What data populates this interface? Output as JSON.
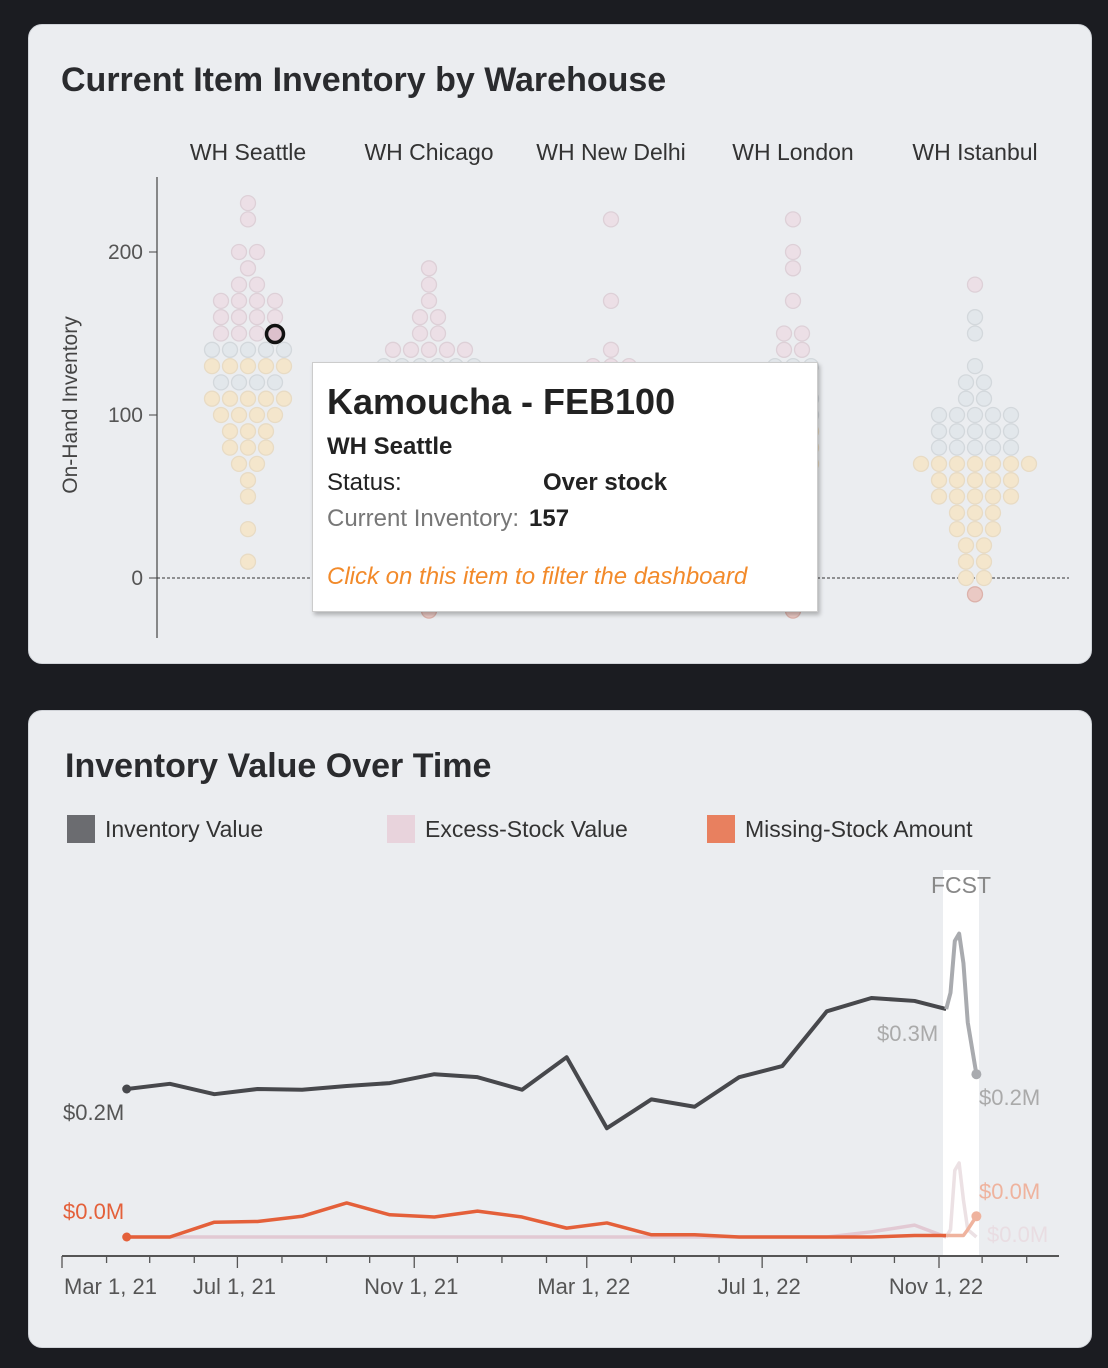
{
  "inventory_card": {
    "title": "Current Item Inventory by Warehouse",
    "y_axis_label": "On-Hand Inventory",
    "y_ticks": [
      0,
      100,
      200
    ],
    "status_colors": {
      "Over stock": "#ecdfe6",
      "Normal": "#e2e7eb",
      "Under stock": "#f4e6cc",
      "Out of stock": "#eac9c4"
    },
    "warehouses": [
      {
        "name": "WH Seattle",
        "bins": [
          [
            230,
            1,
            "Over stock"
          ],
          [
            220,
            1,
            "Over stock"
          ],
          [
            200,
            2,
            "Over stock"
          ],
          [
            190,
            1,
            "Over stock"
          ],
          [
            180,
            2,
            "Over stock"
          ],
          [
            170,
            4,
            "Over stock"
          ],
          [
            160,
            4,
            "Over stock"
          ],
          [
            150,
            4,
            "Over stock"
          ],
          [
            140,
            5,
            "Normal"
          ],
          [
            130,
            5,
            "Under stock"
          ],
          [
            120,
            4,
            "Normal"
          ],
          [
            110,
            5,
            "Under stock"
          ],
          [
            100,
            4,
            "Under stock"
          ],
          [
            90,
            3,
            "Under stock"
          ],
          [
            80,
            3,
            "Under stock"
          ],
          [
            70,
            2,
            "Under stock"
          ],
          [
            60,
            1,
            "Under stock"
          ],
          [
            50,
            1,
            "Under stock"
          ],
          [
            30,
            1,
            "Under stock"
          ],
          [
            10,
            1,
            "Under stock"
          ]
        ]
      },
      {
        "name": "WH Chicago",
        "bins": [
          [
            190,
            1,
            "Over stock"
          ],
          [
            180,
            1,
            "Over stock"
          ],
          [
            170,
            1,
            "Over stock"
          ],
          [
            160,
            2,
            "Over stock"
          ],
          [
            150,
            2,
            "Over stock"
          ],
          [
            140,
            5,
            "Over stock"
          ],
          [
            130,
            6,
            "Normal"
          ],
          [
            -20,
            1,
            "Out of stock"
          ]
        ]
      },
      {
        "name": "WH New Delhi",
        "bins": [
          [
            220,
            1,
            "Over stock"
          ],
          [
            170,
            1,
            "Over stock"
          ],
          [
            140,
            1,
            "Over stock"
          ],
          [
            130,
            3,
            "Over stock"
          ]
        ]
      },
      {
        "name": "WH London",
        "bins": [
          [
            220,
            1,
            "Over stock"
          ],
          [
            200,
            1,
            "Over stock"
          ],
          [
            190,
            1,
            "Over stock"
          ],
          [
            170,
            1,
            "Over stock"
          ],
          [
            150,
            2,
            "Over stock"
          ],
          [
            140,
            2,
            "Over stock"
          ],
          [
            130,
            3,
            "Normal"
          ],
          [
            110,
            3,
            "Normal"
          ],
          [
            100,
            3,
            "Normal"
          ],
          [
            90,
            3,
            "Under stock"
          ],
          [
            80,
            3,
            "Under stock"
          ],
          [
            70,
            3,
            "Under stock"
          ],
          [
            -20,
            1,
            "Out of stock"
          ]
        ]
      },
      {
        "name": "WH Istanbul",
        "bins": [
          [
            180,
            1,
            "Over stock"
          ],
          [
            160,
            1,
            "Normal"
          ],
          [
            150,
            1,
            "Normal"
          ],
          [
            130,
            1,
            "Normal"
          ],
          [
            120,
            2,
            "Normal"
          ],
          [
            110,
            2,
            "Normal"
          ],
          [
            100,
            5,
            "Normal"
          ],
          [
            90,
            5,
            "Normal"
          ],
          [
            80,
            5,
            "Normal"
          ],
          [
            70,
            7,
            "Under stock"
          ],
          [
            60,
            5,
            "Under stock"
          ],
          [
            50,
            5,
            "Under stock"
          ],
          [
            40,
            3,
            "Under stock"
          ],
          [
            30,
            3,
            "Under stock"
          ],
          [
            20,
            2,
            "Under stock"
          ],
          [
            10,
            2,
            "Under stock"
          ],
          [
            0,
            2,
            "Under stock"
          ],
          [
            -10,
            1,
            "Out of stock"
          ]
        ]
      }
    ],
    "tooltip": {
      "title": "Kamoucha - FEB100",
      "warehouse": "WH Seattle",
      "status_label": "Status:",
      "status_value": "Over stock",
      "inventory_label": "Current Inventory:",
      "inventory_value": "157",
      "hint": "Click on this item to filter the dashboard"
    }
  },
  "value_card": {
    "title": "Inventory Value Over Time",
    "legend": [
      {
        "label": "Inventory Value",
        "color": "#6b6c70"
      },
      {
        "label": "Excess-Stock Value",
        "color": "#e8d3dc"
      },
      {
        "label": "Missing-Stock Amount",
        "color": "#e8805f"
      }
    ],
    "forecast_label": "FCST"
  },
  "chart_data": {
    "type": "line",
    "x_ticks": [
      "Mar 1, 21",
      "Jul 1, 21",
      "Nov 1, 21",
      "Mar 1, 22",
      "Jul 1, 22",
      "Nov 1, 22"
    ],
    "x_tick_dates": [
      "2021-03-01",
      "2021-07-01",
      "2021-11-01",
      "2022-03-01",
      "2022-07-01",
      "2022-11-01"
    ],
    "x_range": [
      "2021-03-01",
      "2023-02-15"
    ],
    "y_unit": "$M",
    "x": [
      "2021-04-15",
      "2021-05-15",
      "2021-06-15",
      "2021-07-15",
      "2021-08-15",
      "2021-09-15",
      "2021-10-15",
      "2021-11-15",
      "2021-12-15",
      "2022-01-15",
      "2022-02-15",
      "2022-03-15",
      "2022-04-15",
      "2022-05-15",
      "2022-06-15",
      "2022-07-15",
      "2022-08-15",
      "2022-09-15",
      "2022-10-15",
      "2022-11-06"
    ],
    "series": [
      {
        "name": "Inventory Value",
        "color": "#47484c",
        "values": [
          0.2,
          0.207,
          0.193,
          0.2,
          0.199,
          0.204,
          0.208,
          0.22,
          0.216,
          0.199,
          0.243,
          0.147,
          0.186,
          0.176,
          0.216,
          0.231,
          0.305,
          0.323,
          0.319,
          0.308
        ]
      },
      {
        "name": "Excess-Stock Value",
        "color": "#e2c9d3",
        "values": [
          0,
          0,
          0,
          0,
          0,
          0,
          0,
          0,
          0,
          0,
          0,
          0,
          0,
          0,
          0,
          0,
          0,
          0.007,
          0.016,
          0
        ]
      },
      {
        "name": "Missing-Stock Amount",
        "color": "#e4603a",
        "values": [
          0,
          0,
          0.02,
          0.021,
          0.028,
          0.046,
          0.03,
          0.027,
          0.035,
          0.027,
          0.012,
          0.019,
          0.003,
          0.003,
          0,
          0,
          0,
          0,
          0.002,
          0.002
        ]
      }
    ],
    "forecast": {
      "x": [
        "2022-11-06",
        "2022-11-09",
        "2022-11-12",
        "2022-11-15",
        "2022-11-18",
        "2022-11-21",
        "2022-11-27"
      ],
      "series": [
        {
          "name": "Inventory Value",
          "color": "#a9abaf",
          "values": [
            0.308,
            0.33,
            0.4,
            0.41,
            0.37,
            0.29,
            0.22
          ]
        },
        {
          "name": "Excess-Stock Value",
          "color": "#ece1e4",
          "values": [
            0,
            0.01,
            0.09,
            0.1,
            0.05,
            0.01,
            0
          ]
        },
        {
          "name": "Missing-Stock Amount",
          "color": "#efb39e",
          "values": [
            0.002,
            0.002,
            0.002,
            0.002,
            0.002,
            0.01,
            0.028
          ]
        }
      ]
    },
    "labels": [
      {
        "text": "$0.2M",
        "series": "Inventory Value",
        "at": "start"
      },
      {
        "text": "$0.0M",
        "series": "Missing-Stock Amount",
        "at": "start"
      },
      {
        "text": "$0.3M",
        "series": "Inventory Value",
        "at": "forecast-start"
      },
      {
        "text": "$0.2M",
        "series": "Inventory Value",
        "at": "end"
      },
      {
        "text": "$0.0M",
        "series": "Missing-Stock Amount",
        "at": "end"
      },
      {
        "text": "$0.0M",
        "series": "Excess-Stock Value",
        "at": "end"
      }
    ]
  }
}
